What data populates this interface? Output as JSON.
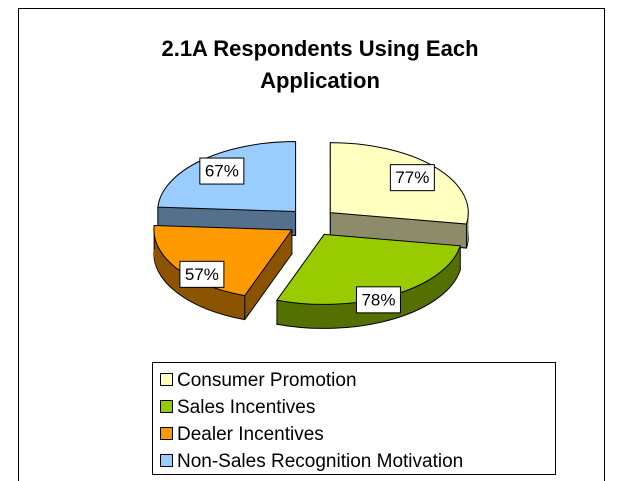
{
  "chart_data": {
    "type": "pie3d",
    "title_lines": [
      "2.1A  Respondents Using Each",
      "Application"
    ],
    "categories": [
      "Consumer Promotion",
      "Sales Incentives",
      "Dealer Incentives",
      "Non-Sales Recognition Motivation"
    ],
    "values": [
      77,
      78,
      57,
      67
    ],
    "value_labels": [
      "77%",
      "78%",
      "57%",
      "67%"
    ],
    "colors": [
      "#FFFFC0",
      "#99CC00",
      "#FF9900",
      "#99CCFF"
    ],
    "legend": "bottom"
  }
}
